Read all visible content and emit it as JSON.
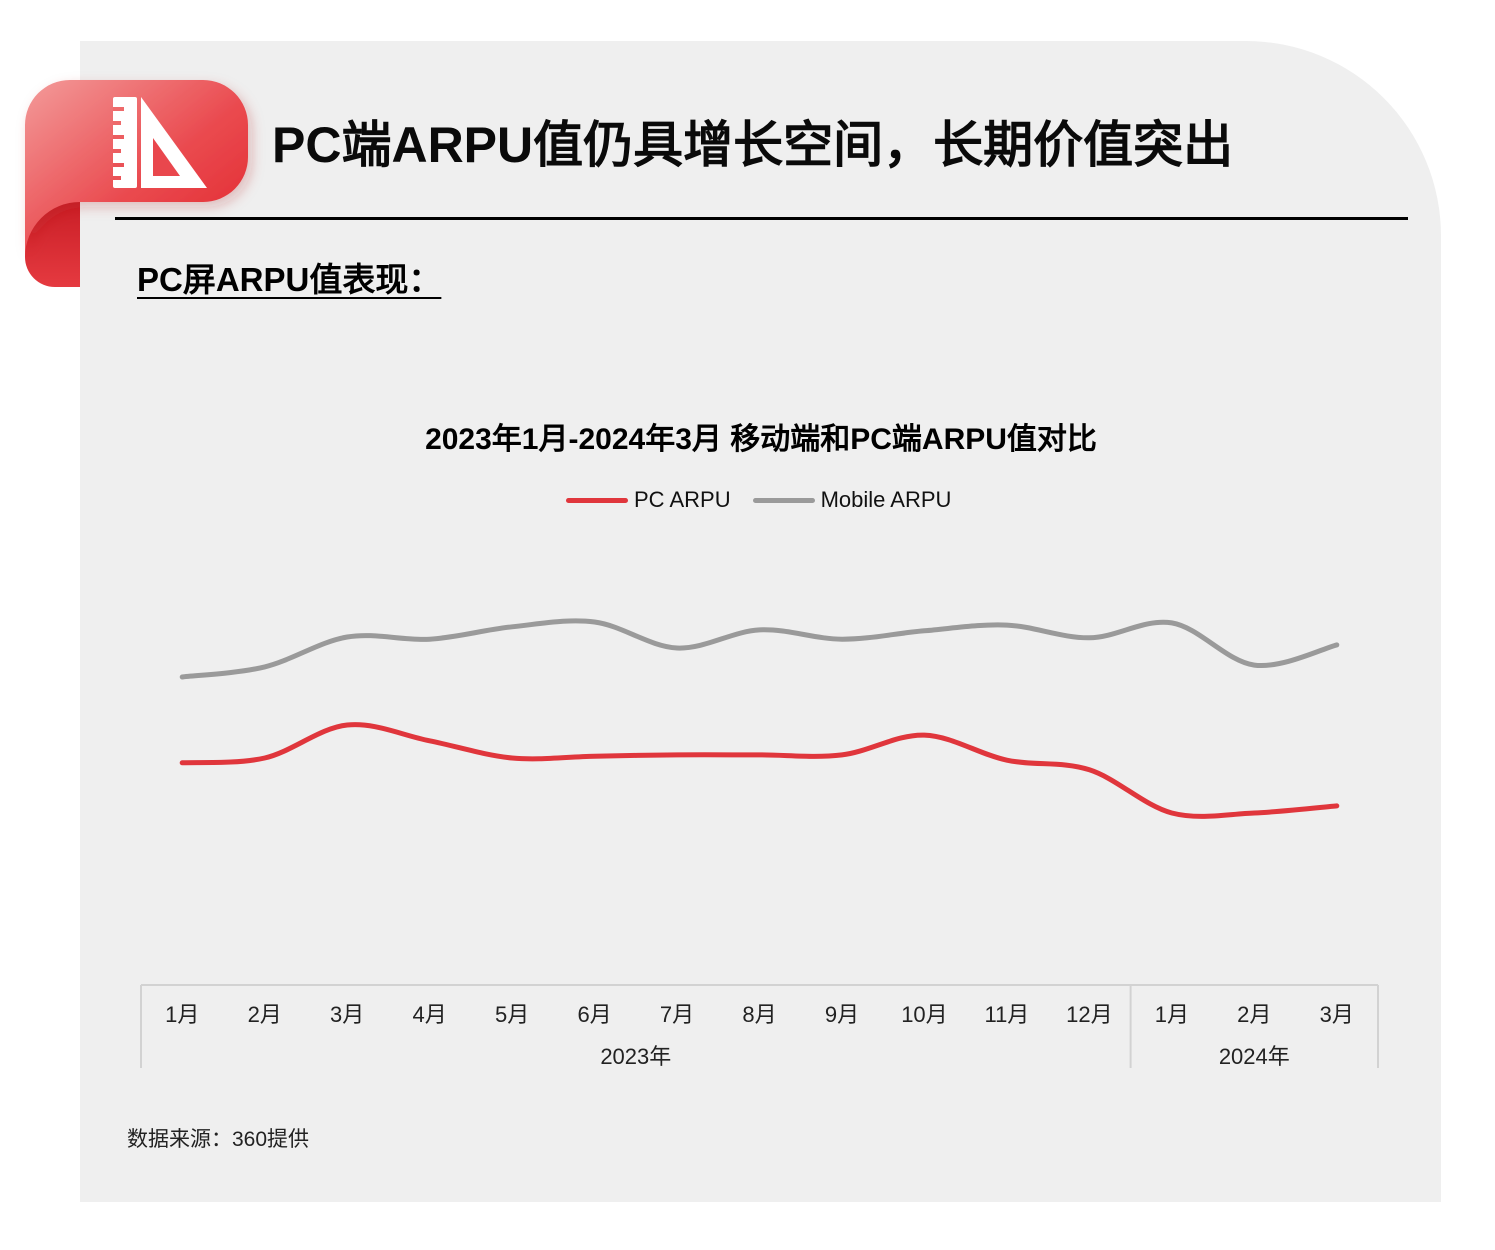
{
  "slide": {
    "title": "PC端ARPU值仍具增长空间，长期价值突出",
    "subtitle": "PC屏ARPU值表现：",
    "source": "数据来源：360提供",
    "badge_icon": "ruler-triangle-icon"
  },
  "colors": {
    "accent": "#e4262d",
    "panel": "#efefef",
    "pc_series": "#e0363c",
    "mobile_series": "#9a9a9a"
  },
  "chart_data": {
    "type": "line",
    "title": "2023年1月-2024年3月 移动端和PC端ARPU值对比",
    "xlabel": "",
    "ylabel": "",
    "categories": [
      "1月",
      "2月",
      "3月",
      "4月",
      "5月",
      "6月",
      "7月",
      "8月",
      "9月",
      "10月",
      "11月",
      "12月",
      "1月",
      "2月",
      "3月"
    ],
    "category_groups": [
      {
        "label": "2023年",
        "count": 12
      },
      {
        "label": "2024年",
        "count": 3
      }
    ],
    "series": [
      {
        "name": "PC ARPU",
        "color": "#e0363c",
        "values": [
          50.5,
          51.6,
          59.1,
          55.5,
          51.6,
          52.0,
          52.3,
          52.3,
          52.3,
          56.8,
          51.1,
          48.9,
          39.1,
          39.1,
          40.7
        ]
      },
      {
        "name": "Mobile ARPU",
        "color": "#9a9a9a",
        "values": [
          70.0,
          72.3,
          79.1,
          78.6,
          81.4,
          82.5,
          76.6,
          80.7,
          78.6,
          80.5,
          81.8,
          78.9,
          82.3,
          72.7,
          77.3
        ]
      }
    ],
    "ylim": [
      0,
      100
    ],
    "y_axis": "hidden",
    "grid": false,
    "smooth": true,
    "legend": "top-center"
  }
}
